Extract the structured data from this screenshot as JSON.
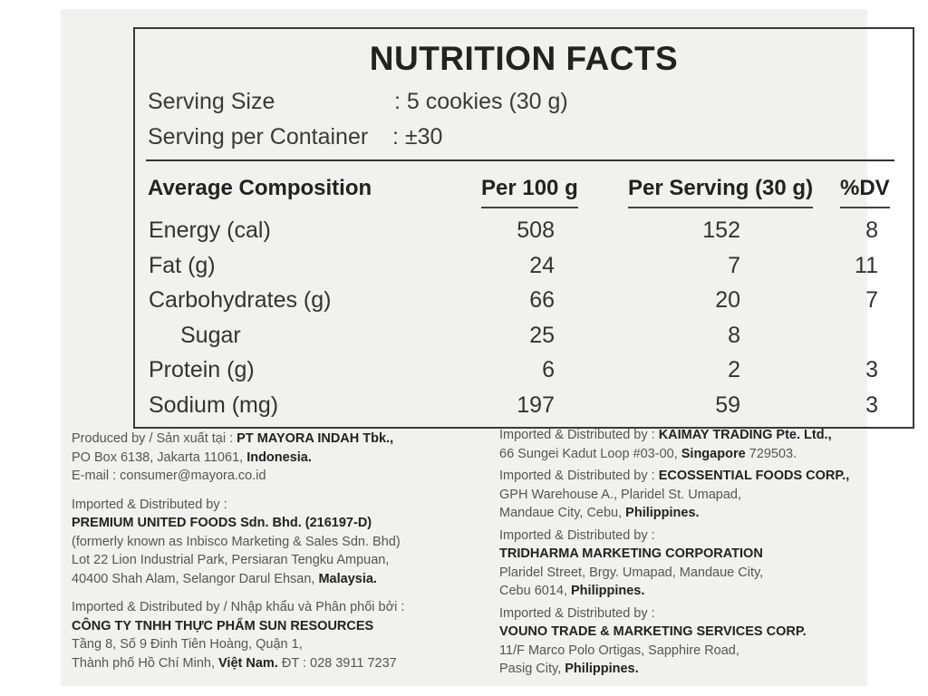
{
  "title": "NUTRITION FACTS",
  "serving_size": {
    "label": "Serving Size",
    "value": ": 5 cookies (30 g)"
  },
  "serving_per_container": {
    "label": "Serving per Container",
    "value": ": ±30"
  },
  "headers": [
    "Average Composition",
    "Per 100 g",
    "Per Serving (30 g)",
    "%DV"
  ],
  "rows": [
    {
      "name": "Energy (cal)",
      "per100": "508",
      "serving": "152",
      "dv": "8"
    },
    {
      "name": "Fat (g)",
      "per100": "24",
      "serving": "7",
      "dv": "11"
    },
    {
      "name": "Carbohydrates (g)",
      "per100": "66",
      "serving": "20",
      "dv": "7"
    },
    {
      "name": "Sugar",
      "per100": "25",
      "serving": "8",
      "dv": "",
      "sub": true
    },
    {
      "name": "Protein (g)",
      "per100": "6",
      "serving": "2",
      "dv": "3"
    },
    {
      "name": "Sodium (mg)",
      "per100": "197",
      "serving": "59",
      "dv": "3"
    }
  ],
  "left_blocks": [
    {
      "lines": [
        [
          {
            "t": "Produced by / Sản xuất tại : "
          },
          {
            "t": "PT MAYORA INDAH Tbk.,",
            "b": true
          }
        ],
        [
          {
            "t": "PO Box 6138, Jakarta 11061, "
          },
          {
            "t": "Indonesia.",
            "b": true
          }
        ],
        [
          {
            "t": "E-mail : consumer@mayora.co.id"
          }
        ]
      ]
    },
    {
      "lines": [
        [
          {
            "t": "Imported & Distributed by :"
          }
        ],
        [
          {
            "t": "PREMIUM UNITED FOODS Sdn. Bhd. (216197-D)",
            "b": true
          }
        ],
        [
          {
            "t": "(formerly known as Inbisco Marketing & Sales Sdn. Bhd)"
          }
        ],
        [
          {
            "t": "Lot 22 Lion Industrial Park, Persiaran Tengku Ampuan,"
          }
        ],
        [
          {
            "t": "40400 Shah Alam, Selangor Darul Ehsan, "
          },
          {
            "t": "Malaysia.",
            "b": true
          }
        ]
      ]
    },
    {
      "lines": [
        [
          {
            "t": "Imported & Distributed by / Nhập khẩu và Phân phối bởi :"
          }
        ],
        [
          {
            "t": "CÔNG TY TNHH THỰC PHẨM SUN RESOURCES",
            "b": true
          }
        ],
        [
          {
            "t": "Tầng 8, Số 9 Đinh Tiên Hoàng, Quận 1,"
          }
        ],
        [
          {
            "t": "Thành phố Hồ Chí Minh, "
          },
          {
            "t": "Việt Nam.",
            "b": true
          },
          {
            "t": " ĐT : 028 3911 7237"
          }
        ]
      ]
    }
  ],
  "right_blocks": [
    {
      "lines": [
        [
          {
            "t": "Imported & Distributed by : "
          },
          {
            "t": "KAIMAY TRADING Pte. Ltd.,",
            "b": true
          }
        ],
        [
          {
            "t": "66 Sungei Kadut Loop #03-00, "
          },
          {
            "t": "Singapore",
            "b": true
          },
          {
            "t": " 729503."
          }
        ]
      ]
    },
    {
      "lines": [
        [
          {
            "t": "Imported & Distributed by : "
          },
          {
            "t": "ECOSSENTIAL FOODS CORP.,",
            "b": true
          }
        ],
        [
          {
            "t": "GPH Warehouse A., Plaridel St. Umapad,"
          }
        ],
        [
          {
            "t": "Mandaue City, Cebu, "
          },
          {
            "t": "Philippines.",
            "b": true
          }
        ]
      ]
    },
    {
      "lines": [
        [
          {
            "t": "Imported & Distributed by :"
          }
        ],
        [
          {
            "t": "TRIDHARMA MARKETING CORPORATION",
            "b": true
          }
        ],
        [
          {
            "t": "Plaridel Street, Brgy. Umapad, Mandaue City,"
          }
        ],
        [
          {
            "t": "Cebu 6014, "
          },
          {
            "t": "Philippines.",
            "b": true
          }
        ]
      ]
    },
    {
      "lines": [
        [
          {
            "t": "Imported & Distributed by :"
          }
        ],
        [
          {
            "t": "VOUNO TRADE & MARKETING SERVICES CORP.",
            "b": true
          }
        ],
        [
          {
            "t": "11/F Marco Polo Ortigas, Sapphire Road,"
          }
        ],
        [
          {
            "t": "Pasig City, "
          },
          {
            "t": "Philippines.",
            "b": true
          }
        ]
      ]
    }
  ]
}
